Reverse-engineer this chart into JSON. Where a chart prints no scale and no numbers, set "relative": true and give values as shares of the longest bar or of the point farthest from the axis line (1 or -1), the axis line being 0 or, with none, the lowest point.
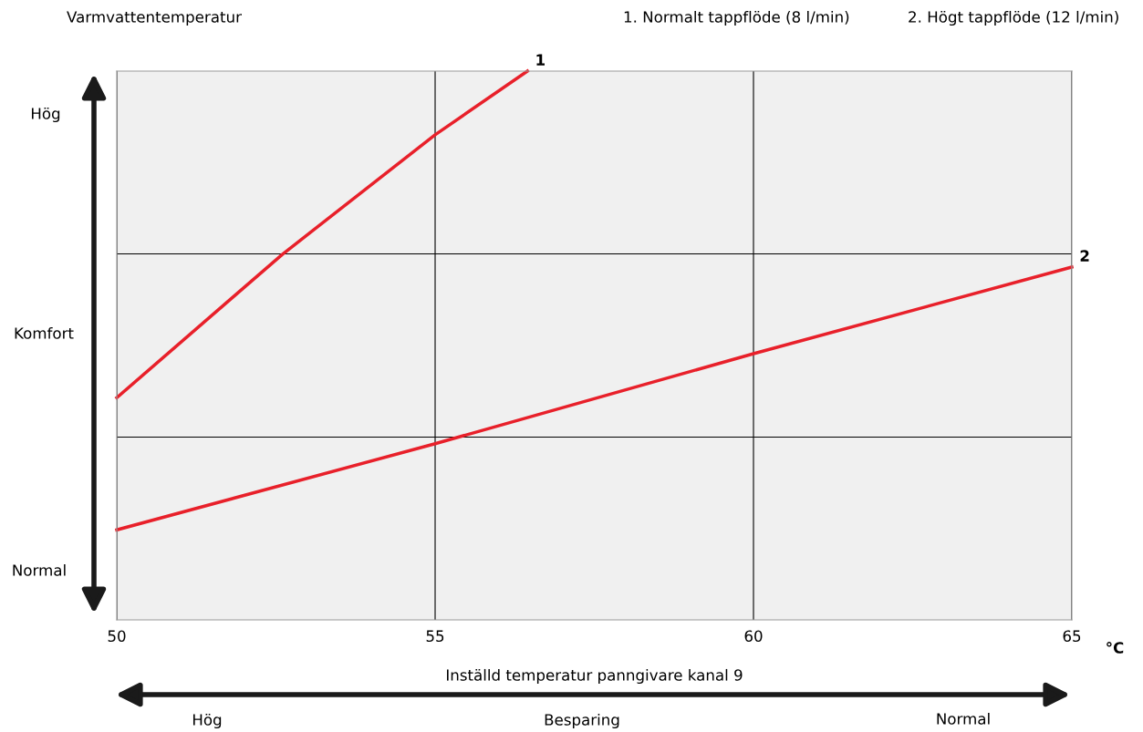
{
  "chart_data": {
    "type": "line",
    "title": "Varmvattentemperatur",
    "xlabel": "Inställd temperatur panngivare kanal 9",
    "relative": true,
    "xlim": [
      50,
      65
    ],
    "xticks": [
      50,
      55,
      60,
      65
    ],
    "grid": "x",
    "ref_lines": [
      {
        "axis": "y",
        "value": 0.333,
        "color": "#000000"
      },
      {
        "axis": "y",
        "value": 0.667,
        "color": "#000000"
      }
    ],
    "annotations": [
      "Hög",
      "Komfort",
      "Normal",
      "Hög",
      "Besparing",
      "Normal",
      "1. Normalt tappflöde (8 l/min)",
      "2. Högt tappflöde (12 l/min)",
      "°C"
    ],
    "series": [
      {
        "name": "1",
        "color": "#e8202a",
        "x": [
          50,
          52.6,
          55,
          56.45
        ],
        "values": [
          0.405,
          0.666,
          0.884,
          1.0
        ]
      },
      {
        "name": "2",
        "color": "#e8202a",
        "x": [
          50,
          55,
          60,
          65
        ],
        "values": [
          0.164,
          0.321,
          0.485,
          0.643
        ]
      }
    ]
  }
}
